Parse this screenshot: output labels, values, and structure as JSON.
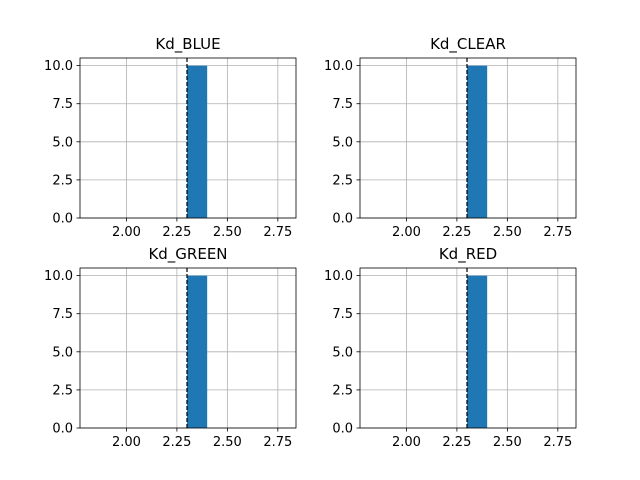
{
  "chart_data": [
    {
      "type": "bar",
      "title": "Kd_BLUE",
      "bins": [
        {
          "x0": 2.3,
          "x1": 2.4,
          "count": 10
        }
      ],
      "reference_line_x": 2.3,
      "xlim": [
        1.77,
        2.84
      ],
      "ylim": [
        0,
        10.5
      ],
      "xticks": [
        2.0,
        2.25,
        2.5,
        2.75
      ],
      "xtick_labels": [
        "2.00",
        "2.25",
        "2.50",
        "2.75"
      ],
      "yticks": [
        0,
        2.5,
        5,
        7.5,
        10
      ],
      "ytick_labels": [
        "0.0",
        "2.5",
        "5.0",
        "7.5",
        "10.0"
      ],
      "grid": true
    },
    {
      "type": "bar",
      "title": "Kd_CLEAR",
      "bins": [
        {
          "x0": 2.3,
          "x1": 2.4,
          "count": 10
        }
      ],
      "reference_line_x": 2.3,
      "xlim": [
        1.77,
        2.84
      ],
      "ylim": [
        0,
        10.5
      ],
      "xticks": [
        2.0,
        2.25,
        2.5,
        2.75
      ],
      "xtick_labels": [
        "2.00",
        "2.25",
        "2.50",
        "2.75"
      ],
      "yticks": [
        0,
        2.5,
        5,
        7.5,
        10
      ],
      "ytick_labels": [
        "0.0",
        "2.5",
        "5.0",
        "7.5",
        "10.0"
      ],
      "grid": true
    },
    {
      "type": "bar",
      "title": "Kd_GREEN",
      "bins": [
        {
          "x0": 2.3,
          "x1": 2.4,
          "count": 10
        }
      ],
      "reference_line_x": 2.3,
      "xlim": [
        1.77,
        2.84
      ],
      "ylim": [
        0,
        10.5
      ],
      "xticks": [
        2.0,
        2.25,
        2.5,
        2.75
      ],
      "xtick_labels": [
        "2.00",
        "2.25",
        "2.50",
        "2.75"
      ],
      "yticks": [
        0,
        2.5,
        5,
        7.5,
        10
      ],
      "ytick_labels": [
        "0.0",
        "2.5",
        "5.0",
        "7.5",
        "10.0"
      ],
      "grid": true
    },
    {
      "type": "bar",
      "title": "Kd_RED",
      "bins": [
        {
          "x0": 2.3,
          "x1": 2.4,
          "count": 10
        }
      ],
      "reference_line_x": 2.3,
      "xlim": [
        1.77,
        2.84
      ],
      "ylim": [
        0,
        10.5
      ],
      "xticks": [
        2.0,
        2.25,
        2.5,
        2.75
      ],
      "xtick_labels": [
        "2.00",
        "2.25",
        "2.50",
        "2.75"
      ],
      "yticks": [
        0,
        2.5,
        5,
        7.5,
        10
      ],
      "ytick_labels": [
        "0.0",
        "2.5",
        "5.0",
        "7.5",
        "10.0"
      ],
      "grid": true
    }
  ],
  "colors": {
    "bar": "#1f77b4",
    "grid": "#b0b0b0",
    "axis": "#000000",
    "reference_line": "#000000"
  }
}
